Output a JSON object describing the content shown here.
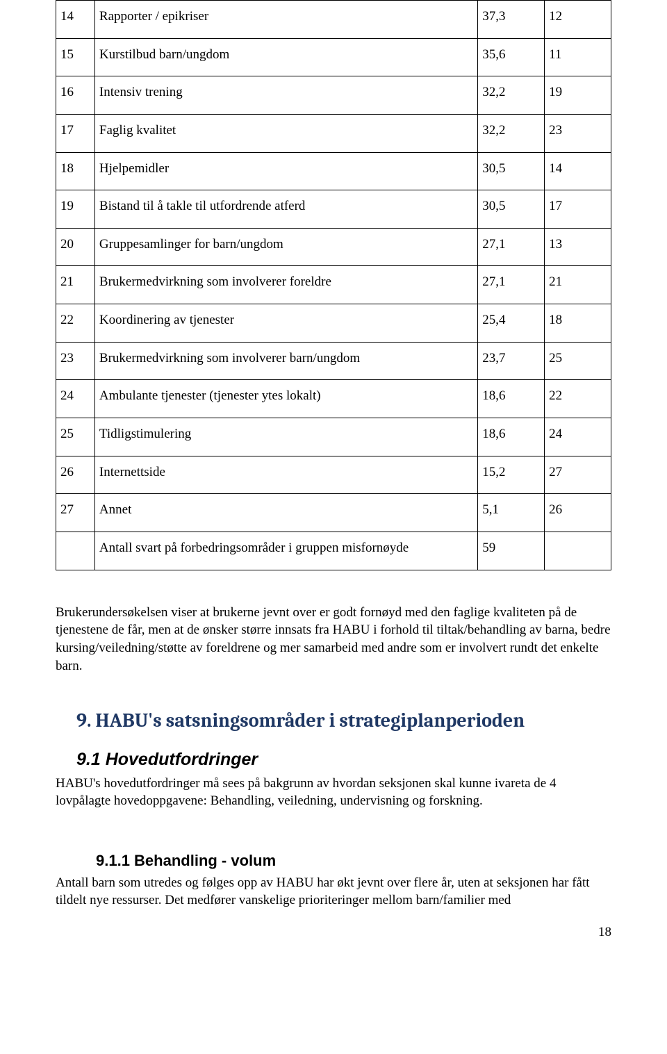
{
  "table": {
    "columns": [
      "num",
      "desc",
      "val1",
      "val2"
    ],
    "col_widths_pct": [
      7,
      69,
      12,
      12
    ],
    "border_color": "#000000",
    "rows": [
      [
        "14",
        "Rapporter / epikriser",
        "37,3",
        "12"
      ],
      [
        "15",
        "Kurstilbud barn/ungdom",
        "35,6",
        "11"
      ],
      [
        "16",
        "Intensiv trening",
        "32,2",
        "19"
      ],
      [
        "17",
        "Faglig kvalitet",
        "32,2",
        "23"
      ],
      [
        "18",
        "Hjelpemidler",
        "30,5",
        "14"
      ],
      [
        "19",
        "Bistand til å takle til utfordrende atferd",
        "30,5",
        "17"
      ],
      [
        "20",
        "Gruppesamlinger for barn/ungdom",
        "27,1",
        "13"
      ],
      [
        "21",
        "Brukermedvirkning som involverer foreldre",
        "27,1",
        "21"
      ],
      [
        "22",
        "Koordinering av tjenester",
        "25,4",
        "18"
      ],
      [
        "23",
        "Brukermedvirkning som involverer barn/ungdom",
        "23,7",
        "25"
      ],
      [
        "24",
        "Ambulante tjenester (tjenester ytes lokalt)",
        "18,6",
        "22"
      ],
      [
        "25",
        "Tidligstimulering",
        "18,6",
        "24"
      ],
      [
        "26",
        "Internettside",
        "15,2",
        "27"
      ],
      [
        "27",
        "Annet",
        "5,1",
        "26"
      ],
      [
        "",
        "Antall svart på forbedringsområder i gruppen misfornøyde",
        "59",
        ""
      ]
    ]
  },
  "paragraph1": "Brukerundersøkelsen viser at brukerne jevnt over er godt fornøyd med den faglige kvaliteten på de tjenestene de får, men at de ønsker større innsats fra HABU i forhold til tiltak/behandling av barna, bedre kursing/veiledning/støtte av foreldrene og mer samarbeid med andre som er involvert rundt det enkelte barn.",
  "section9": {
    "title": "9.  HABU's satsningsområder i strategiplanperioden",
    "title_color": "#1f3864",
    "title_fontsize": 28
  },
  "section9_1": {
    "title": "9.1 Hovedutfordringer",
    "body": "HABU's hovedutfordringer må sees på bakgrunn av hvordan seksjonen skal kunne ivareta de 4 lovpålagte hovedoppgavene: Behandling, veiledning, undervisning og forskning."
  },
  "section9_1_1": {
    "title": "9.1.1 Behandling - volum",
    "body": "Antall barn som utredes og følges opp av HABU har økt jevnt over flere år, uten at seksjonen har fått tildelt nye ressurser. Det medfører vanskelige prioriteringer mellom barn/familier med"
  },
  "page_number": "18"
}
